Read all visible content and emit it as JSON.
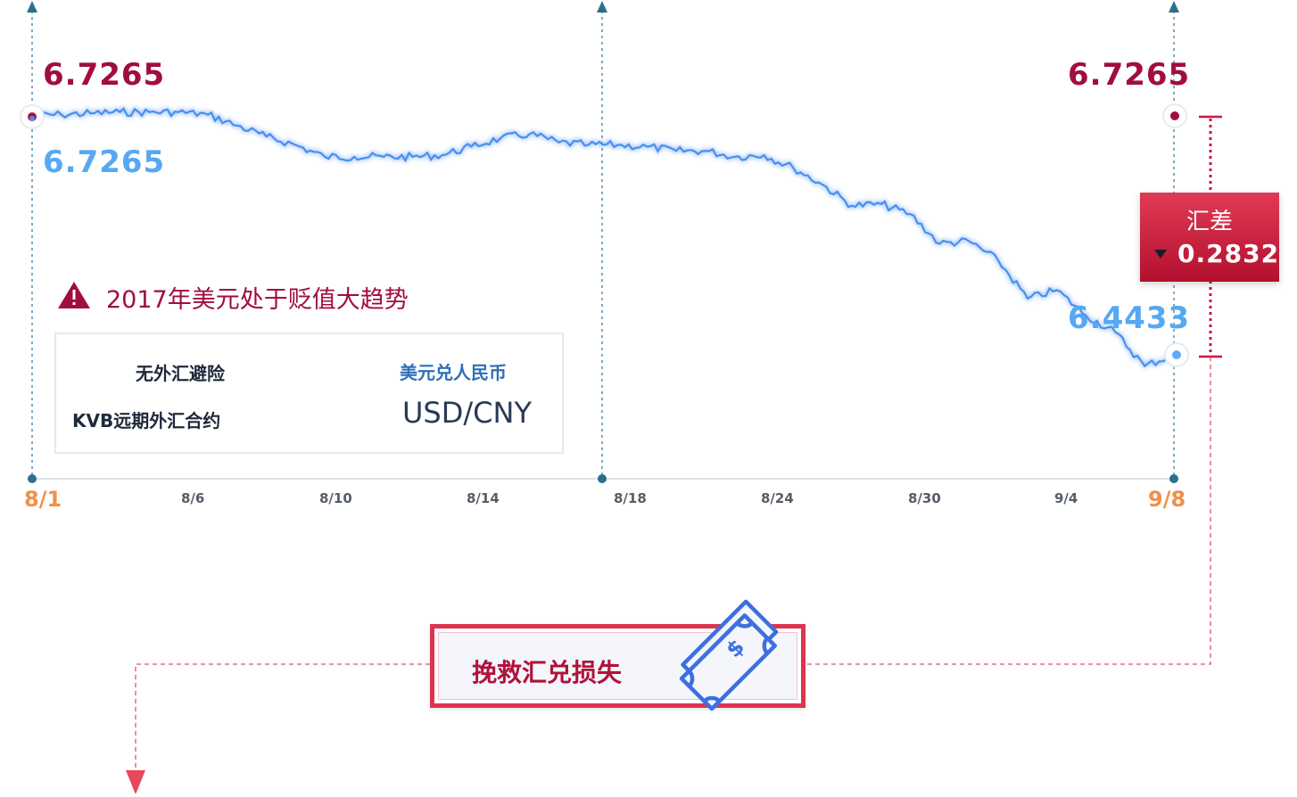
{
  "chart_data": {
    "type": "line",
    "title": "",
    "xlabel": "",
    "ylabel": "",
    "x_ticks": [
      "8/1",
      "8/6",
      "8/10",
      "8/14",
      "8/18",
      "8/24",
      "8/30",
      "9/4",
      "9/8"
    ],
    "series": [
      {
        "name": "无外汇避险",
        "color": "#4a8ff0",
        "values": [
          6.7265,
          6.728,
          6.7295,
          6.731,
          6.731,
          6.731,
          6.728,
          6.715,
          6.702,
          6.692,
          6.678,
          6.678,
          6.678,
          6.678,
          6.68,
          6.69,
          6.7,
          6.705,
          6.695,
          6.692,
          6.692,
          6.69,
          6.685,
          6.685,
          6.678,
          6.68,
          6.665,
          6.645,
          6.62,
          6.622,
          6.61,
          6.575,
          6.578,
          6.555,
          6.51,
          6.52,
          6.49,
          6.47,
          6.43,
          6.4433
        ]
      },
      {
        "name": "KVB远期外汇合约",
        "color": "#b0123a",
        "values": [
          6.7265,
          6.7265
        ]
      }
    ],
    "start_value": "6.7265",
    "end_value_forward": "6.7265",
    "start_value_spot": "6.7265",
    "end_value_spot": "6.4433",
    "ylim": [
      6.37,
      6.78
    ],
    "grid": false,
    "legend_position": "bottom-left"
  },
  "labels": {
    "start_red": "6.7265",
    "end_red": "6.7265",
    "start_blue": "6.7265",
    "end_blue": "6.4433",
    "x_start": "8/1",
    "x_end": "9/8",
    "ticks_mid": [
      "8/6",
      "8/10",
      "8/14",
      "8/18",
      "8/24",
      "8/30",
      "9/4"
    ]
  },
  "warning": {
    "icon": "warning-triangle-icon",
    "text": "2017年美元处于贬值大趋势"
  },
  "legend": {
    "item1": "无外汇避险",
    "item2": "KVB远期外汇合约",
    "pair_cn": "美元兑人民币",
    "pair_en": "USD/CNY"
  },
  "difference": {
    "title": "汇差",
    "value": "0.2832",
    "icon": "down-arrow-icon"
  },
  "rescue": {
    "text": "挽救汇兑损失",
    "icon": "money-bills-icon"
  },
  "colors": {
    "red": "#b0123a",
    "blue": "#4a8ff0",
    "light_blue": "#56a8f2",
    "orange": "#f0904a",
    "teal_marker": "#2b6f8f"
  }
}
